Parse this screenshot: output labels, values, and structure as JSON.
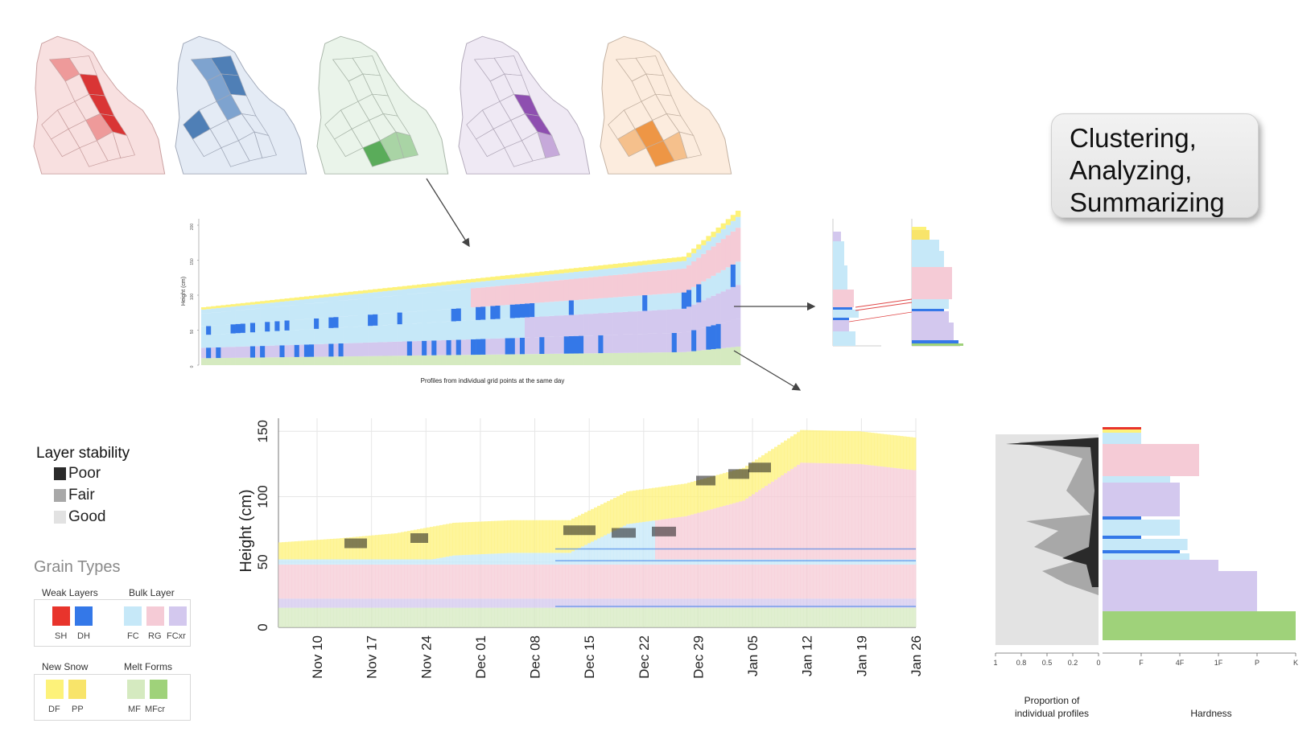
{
  "maps": [
    {
      "name": "cluster-red",
      "light": "#f8e0e0",
      "mid": "#ee9a9a",
      "dark": "#d93535",
      "line": "#c9a0a0"
    },
    {
      "name": "cluster-blue",
      "light": "#e4ebf5",
      "mid": "#7ea3cf",
      "dark": "#4f7fb6",
      "line": "#a0a8b8"
    },
    {
      "name": "cluster-green",
      "light": "#eaf4ea",
      "mid": "#a9d4a5",
      "dark": "#5aac5a",
      "line": "#a9b6a9"
    },
    {
      "name": "cluster-purple",
      "light": "#efe9f4",
      "mid": "#c6a9da",
      "dark": "#8e4fb0",
      "line": "#b2a9ba"
    },
    {
      "name": "cluster-orange",
      "light": "#fcecde",
      "mid": "#f5c08c",
      "dark": "#ee9645",
      "line": "#c2b0a0"
    }
  ],
  "callout": {
    "lines": [
      "Clustering,",
      "Analyzing,",
      "Summarizing"
    ]
  },
  "mid_chart": {
    "xlabel": "Profiles from individual grid points at the same day",
    "ylabel": "Height (cm)",
    "yticks": [
      "0",
      "50",
      "100",
      "150",
      "200"
    ]
  },
  "legend": {
    "stability_title": "Layer stability",
    "stability": [
      {
        "label": "Poor",
        "color": "#2a2a2a"
      },
      {
        "label": "Fair",
        "color": "#a8a8a8"
      },
      {
        "label": "Good",
        "color": "#e2e2e2"
      }
    ],
    "grain_title": "Grain Types",
    "weak_title": "Weak Layers",
    "bulk_title": "Bulk Layer",
    "new_title": "New Snow",
    "melt_title": "Melt Forms",
    "weak": [
      {
        "code": "SH",
        "color": "#e8342c"
      },
      {
        "code": "DH",
        "color": "#3478e8"
      }
    ],
    "bulk": [
      {
        "code": "FC",
        "color": "#c6e8f8"
      },
      {
        "code": "RG",
        "color": "#f5cbd6"
      },
      {
        "code": "FCxr",
        "color": "#d3c8ee"
      }
    ],
    "new": [
      {
        "code": "DF",
        "color": "#fdf27a"
      },
      {
        "code": "PP",
        "color": "#f8e46a"
      }
    ],
    "melt": [
      {
        "code": "MF",
        "color": "#d5eac0"
      },
      {
        "code": "MFcr",
        "color": "#9fd27a"
      }
    ]
  },
  "chart_data": {
    "type": "area",
    "title": "",
    "xlabel": "",
    "ylabel": "Height (cm)",
    "ylim": [
      0,
      160
    ],
    "yticks": [
      0,
      50,
      100,
      150
    ],
    "x_ticks": [
      "Nov 10",
      "Nov 17",
      "Nov 24",
      "Dec 01",
      "Dec 08",
      "Dec 15",
      "Dec 22",
      "Dec 29",
      "Jan 05",
      "Jan 12",
      "Jan 19",
      "Jan 26"
    ],
    "series": [
      {
        "name": "snow height (cm)",
        "color": "#fdf27a",
        "values": [
          65,
          68,
          72,
          80,
          82,
          82,
          104,
          110,
          122,
          151,
          150,
          145
        ]
      }
    ]
  },
  "proportion_panel": {
    "xlabel": "Proportion of individual profiles",
    "xticks": [
      "1",
      "0.8",
      "0.5",
      "0.2",
      "0"
    ]
  },
  "hardness_panel": {
    "xlabel": "Hardness",
    "xticks": [
      "F",
      "4F",
      "1F",
      "P",
      "K"
    ]
  }
}
